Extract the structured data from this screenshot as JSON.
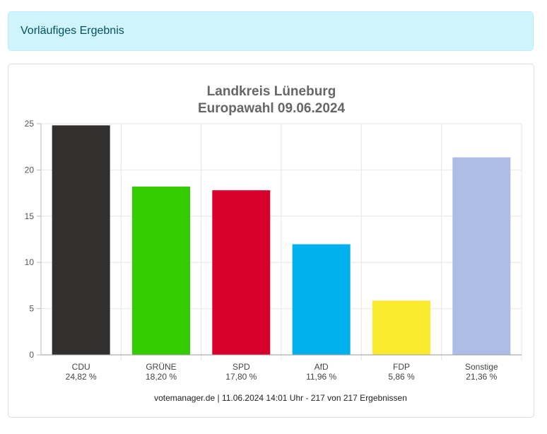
{
  "alert": {
    "text": "Vorläufiges Ergebnis"
  },
  "chart_data": {
    "type": "bar",
    "title": "Landkreis Lüneburg",
    "subtitle": "Europawahl 09.06.2024",
    "categories": [
      "CDU",
      "GRÜNE",
      "SPD",
      "AfD",
      "FDP",
      "Sonstige"
    ],
    "values": [
      24.82,
      18.2,
      17.8,
      11.96,
      5.86,
      21.36
    ],
    "value_labels": [
      "24,82 %",
      "18,20 %",
      "17,80 %",
      "11,96 %",
      "5,86 %",
      "21,36 %"
    ],
    "colors": [
      "#32302e",
      "#33cc00",
      "#d7002c",
      "#00b1ed",
      "#faec2d",
      "#aebde6"
    ],
    "ylim": [
      0,
      25
    ],
    "yticks": [
      0,
      5,
      10,
      15,
      20,
      25
    ],
    "grid": true,
    "legend": "none"
  },
  "footer": {
    "source": "votemanager.de | 11.06.2024 14:01 Uhr - 217 von 217 Ergebnissen"
  }
}
